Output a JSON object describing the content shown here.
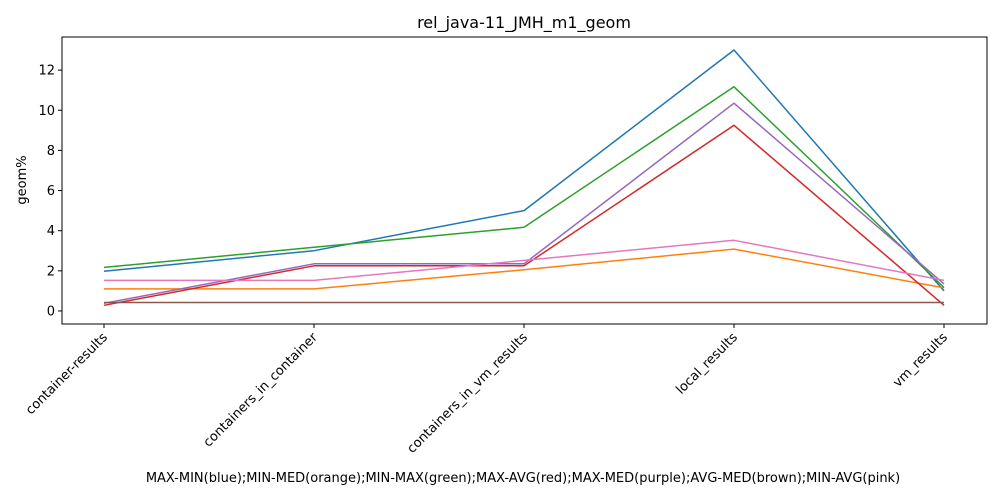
{
  "chart_data": {
    "type": "line",
    "title": "rel_java-11_JMH_m1_geom",
    "xlabel": "MAX-MIN(blue);MIN-MED(orange);MIN-MAX(green);MAX-AVG(red);MAX-MED(purple);AVG-MED(brown);MIN-AVG(pink)",
    "ylabel": "geom%",
    "categories": [
      "container-results",
      "containers_in_container",
      "containers_in_vm_results",
      "local_results",
      "vm_results"
    ],
    "yticks": [
      0,
      2,
      4,
      6,
      8,
      10,
      12
    ],
    "ylim": [
      -0.65,
      13.65
    ],
    "grid": false,
    "series": [
      {
        "color": "#1f77b4",
        "values": [
          1.98,
          3.0,
          5.0,
          13.0,
          1.0
        ]
      },
      {
        "color": "#ff7f0e",
        "values": [
          1.1,
          1.1,
          2.05,
          3.08,
          1.15
        ]
      },
      {
        "color": "#2ca02c",
        "values": [
          2.17,
          3.17,
          4.17,
          11.17,
          1.17
        ]
      },
      {
        "color": "#d62728",
        "values": [
          0.28,
          2.25,
          2.25,
          9.25,
          0.28
        ]
      },
      {
        "color": "#9467bd",
        "values": [
          0.38,
          2.35,
          2.35,
          10.35,
          1.35
        ]
      },
      {
        "color": "#8c564b",
        "values": [
          0.42,
          0.42,
          0.42,
          0.42,
          0.42
        ]
      },
      {
        "color": "#e377c2",
        "values": [
          1.52,
          1.52,
          2.52,
          3.52,
          1.52
        ]
      }
    ]
  }
}
